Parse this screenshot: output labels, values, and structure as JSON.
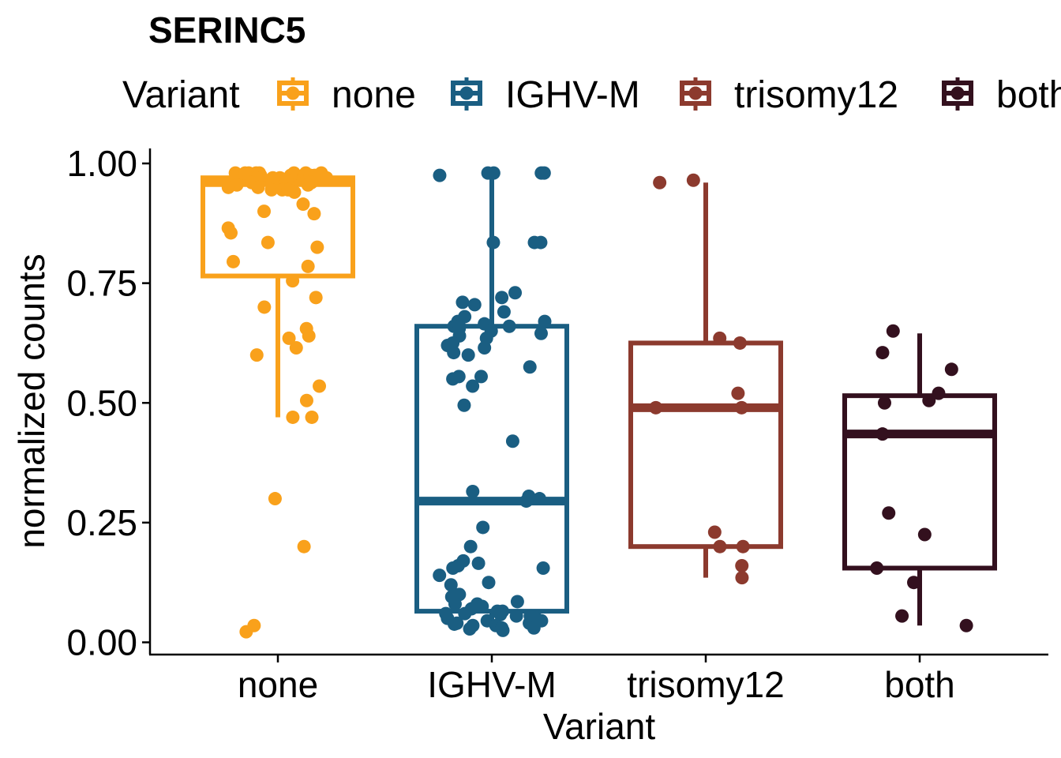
{
  "chart_data": {
    "type": "box",
    "title": "SERINC5",
    "xlabel": "Variant",
    "ylabel": "normalized counts",
    "ylim": [
      -0.02,
      1.02
    ],
    "yticks": [
      0,
      0.25,
      0.5,
      0.75,
      1.0
    ],
    "ytick_labels": [
      "0.00",
      "0.25",
      "0.50",
      "0.75",
      "1.00"
    ],
    "grid": false,
    "legend": {
      "title": "Variant",
      "position": "top"
    },
    "categories": [
      "none",
      "IGHV-M",
      "trisomy12",
      "both"
    ],
    "colors": [
      "#F9A11B",
      "#1A5E82",
      "#8C3A2E",
      "#33101E"
    ],
    "series": [
      {
        "name": "none",
        "box": {
          "whisker_low": 0.47,
          "q1": 0.765,
          "median": 0.96,
          "q3": 0.97,
          "whisker_high": 0.98
        },
        "points": [
          0.98,
          0.98,
          0.98,
          0.98,
          0.98,
          0.98,
          0.98,
          0.98,
          0.975,
          0.975,
          0.975,
          0.975,
          0.97,
          0.97,
          0.97,
          0.97,
          0.965,
          0.965,
          0.96,
          0.96,
          0.955,
          0.955,
          0.95,
          0.95,
          0.945,
          0.945,
          0.945,
          0.94,
          0.915,
          0.9,
          0.895,
          0.865,
          0.855,
          0.835,
          0.825,
          0.795,
          0.785,
          0.755,
          0.72,
          0.7,
          0.655,
          0.64,
          0.635,
          0.615,
          0.6,
          0.535,
          0.505,
          0.47,
          0.47,
          0.3,
          0.2,
          0.035,
          0.022
        ]
      },
      {
        "name": "IGHV-M",
        "box": {
          "whisker_low": 0.03,
          "q1": 0.065,
          "median": 0.295,
          "q3": 0.66,
          "whisker_high": 0.975
        },
        "points": [
          0.98,
          0.98,
          0.98,
          0.98,
          0.975,
          0.835,
          0.835,
          0.835,
          0.73,
          0.72,
          0.71,
          0.705,
          0.69,
          0.68,
          0.67,
          0.67,
          0.665,
          0.66,
          0.66,
          0.66,
          0.655,
          0.65,
          0.645,
          0.64,
          0.635,
          0.625,
          0.62,
          0.615,
          0.605,
          0.6,
          0.575,
          0.555,
          0.555,
          0.55,
          0.535,
          0.495,
          0.42,
          0.315,
          0.305,
          0.3,
          0.295,
          0.24,
          0.2,
          0.17,
          0.165,
          0.16,
          0.155,
          0.155,
          0.14,
          0.125,
          0.12,
          0.1,
          0.095,
          0.085,
          0.08,
          0.08,
          0.075,
          0.07,
          0.065,
          0.065,
          0.06,
          0.06,
          0.058,
          0.055,
          0.055,
          0.05,
          0.05,
          0.045,
          0.045,
          0.04,
          0.04,
          0.038,
          0.035,
          0.035,
          0.03,
          0.03,
          0.028,
          0.025
        ]
      },
      {
        "name": "trisomy12",
        "box": {
          "whisker_low": 0.135,
          "q1": 0.2,
          "median": 0.49,
          "q3": 0.625,
          "whisker_high": 0.96
        },
        "points": [
          0.965,
          0.96,
          0.635,
          0.625,
          0.52,
          0.49,
          0.49,
          0.23,
          0.2,
          0.2,
          0.16,
          0.135
        ]
      },
      {
        "name": "both",
        "box": {
          "whisker_low": 0.035,
          "q1": 0.155,
          "median": 0.435,
          "q3": 0.515,
          "whisker_high": 0.645
        },
        "points": [
          0.65,
          0.605,
          0.57,
          0.52,
          0.505,
          0.5,
          0.435,
          0.27,
          0.225,
          0.155,
          0.125,
          0.055,
          0.035
        ]
      }
    ]
  }
}
